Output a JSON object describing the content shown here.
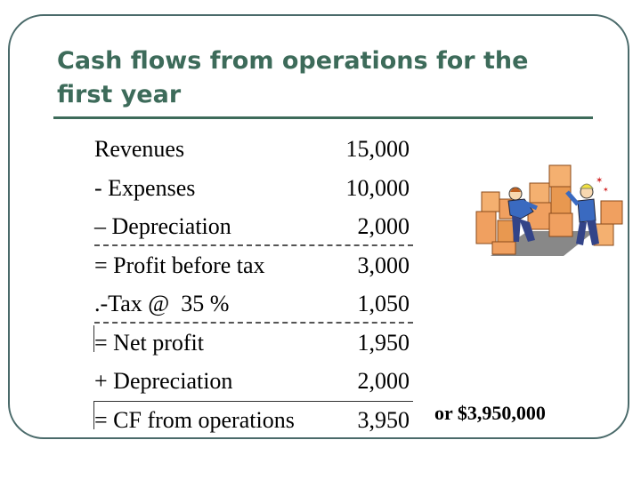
{
  "slide": {
    "title": "Cash flows from operations for the first year",
    "note": "or $3,950,000",
    "clipart_icon": "workers-moving-boxes-icon"
  },
  "table": {
    "rows": [
      {
        "label": "Revenues",
        "value": "15,000"
      },
      {
        "label": "- Expenses",
        "value": "10,000"
      },
      {
        "label": "– Depreciation",
        "value": "2,000"
      },
      {
        "label": "= Profit before tax",
        "value": "3,000"
      },
      {
        "label": ".-Tax @  35 %",
        "value": "1,050"
      },
      {
        "label": "= Net profit",
        "value": "1,950"
      },
      {
        "label": "+ Depreciation",
        "value": "2,000"
      },
      {
        "label": "= CF from operations",
        "value": "3,950"
      }
    ]
  },
  "colors": {
    "title": "#3d6b5a",
    "frame": "#4a6a6a",
    "box": "#f0a060"
  }
}
